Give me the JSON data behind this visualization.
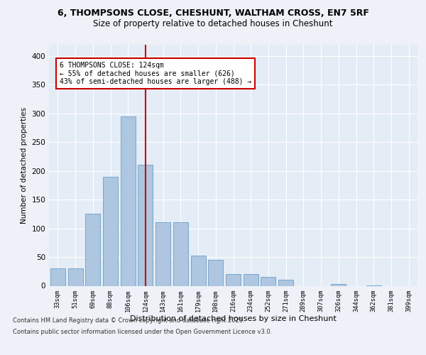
{
  "title_line1": "6, THOMPSONS CLOSE, CHESHUNT, WALTHAM CROSS, EN7 5RF",
  "title_line2": "Size of property relative to detached houses in Cheshunt",
  "xlabel": "Distribution of detached houses by size in Cheshunt",
  "ylabel": "Number of detached properties",
  "categories": [
    "33sqm",
    "51sqm",
    "69sqm",
    "88sqm",
    "106sqm",
    "124sqm",
    "143sqm",
    "161sqm",
    "179sqm",
    "198sqm",
    "216sqm",
    "234sqm",
    "252sqm",
    "271sqm",
    "289sqm",
    "307sqm",
    "326sqm",
    "344sqm",
    "362sqm",
    "381sqm",
    "399sqm"
  ],
  "values": [
    30,
    30,
    125,
    190,
    295,
    210,
    110,
    110,
    52,
    45,
    20,
    20,
    15,
    10,
    0,
    0,
    3,
    0,
    1,
    0,
    0
  ],
  "bar_color": "#aec6e0",
  "bar_edge_color": "#6a9fc8",
  "vline_x": 5,
  "vline_color": "#cc0000",
  "annotation_text": "6 THOMPSONS CLOSE: 124sqm\n← 55% of detached houses are smaller (626)\n43% of semi-detached houses are larger (488) →",
  "annotation_box_color": "#ffffff",
  "annotation_box_edge": "#cc0000",
  "ylim": [
    0,
    420
  ],
  "yticks": [
    0,
    50,
    100,
    150,
    200,
    250,
    300,
    350,
    400
  ],
  "footer_line1": "Contains HM Land Registry data © Crown copyright and database right 2025.",
  "footer_line2": "Contains public sector information licensed under the Open Government Licence v3.0.",
  "bg_color": "#eef2f8",
  "plot_bg_color": "#e4ecf6"
}
